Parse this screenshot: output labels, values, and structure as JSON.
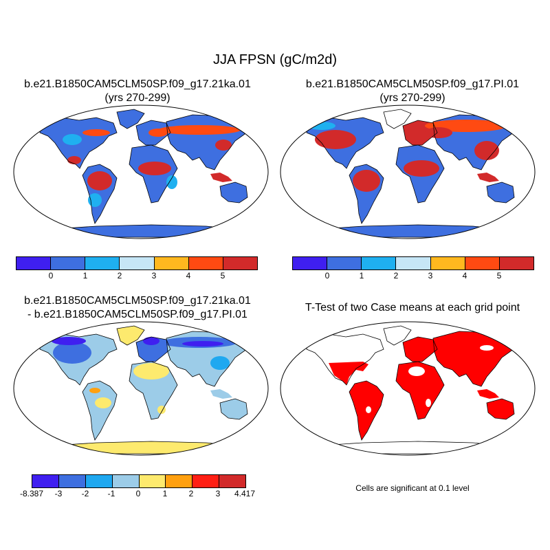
{
  "title": "JJA FPSN (gC/m2d)",
  "panels": [
    {
      "id": "p1",
      "title_line1": "b.e21.B1850CAM5CLM50SP.f09_g17.21ka.01",
      "title_line2": "(yrs 270-299)"
    },
    {
      "id": "p2",
      "title_line1": "b.e21.B1850CAM5CLM50SP.f09_g17.PI.01",
      "title_line2": "(yrs 270-299)"
    },
    {
      "id": "p3",
      "title_line1": "b.e21.B1850CAM5CLM50SP.f09_g17.21ka.01",
      "title_line2": "- b.e21.B1850CAM5CLM50SP.f09_g17.PI.01"
    },
    {
      "id": "p4",
      "title_line1": "T-Test of two Case means at each grid point",
      "footnote": "Cells are significant at 0.1 level"
    }
  ],
  "colorbar_abs": {
    "colors": [
      "#3f1ff0",
      "#3e6fe0",
      "#1fb0f0",
      "#c6e6f6",
      "#ffb81f",
      "#ff4a12",
      "#d22a2a"
    ],
    "labels": [
      "0",
      "1",
      "2",
      "3",
      "4",
      "5"
    ]
  },
  "colorbar_diff": {
    "colors": [
      "#3f1ff0",
      "#3e6fe0",
      "#1fa8f0",
      "#9ccce8",
      "#fdea6e",
      "#ffa010",
      "#ff1f14",
      "#d22a2a"
    ],
    "labels": [
      "-8.387",
      "-3",
      "-2",
      "-1",
      "0",
      "1",
      "2",
      "3",
      "4.417"
    ]
  },
  "colors": {
    "significant": "#ff0000",
    "coast": "#000000",
    "ocean": "#ffffff"
  }
}
